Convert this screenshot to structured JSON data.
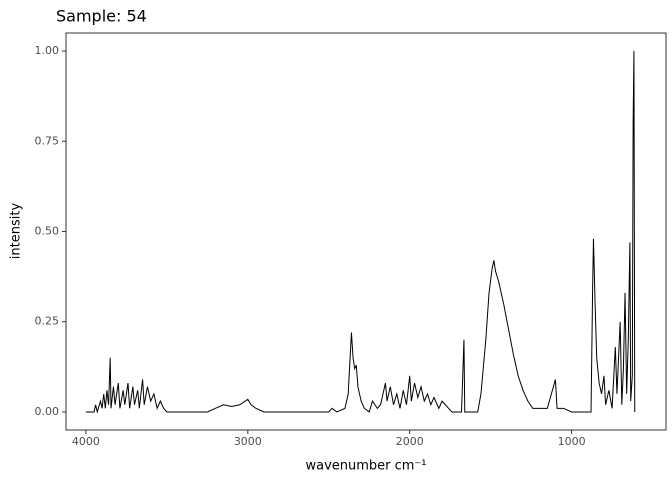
{
  "chart_data": {
    "type": "line",
    "title": "Sample: 54",
    "x_label": "wavenumber cm⁻¹",
    "y_label": "intensity",
    "xlim": [
      4123,
      417
    ],
    "ylim": [
      -0.05,
      1.05
    ],
    "xticks": [
      4000,
      3000,
      2000,
      1000
    ],
    "yticks": [
      {
        "value": 0,
        "label": "0.00"
      },
      {
        "value": 0.25,
        "label": "0.25"
      },
      {
        "value": 0.5,
        "label": "0.50"
      },
      {
        "value": 0.75,
        "label": "0.75"
      },
      {
        "value": 1,
        "label": "1.00"
      }
    ],
    "grid": false,
    "color": "#000000",
    "x": [
      4000,
      3950,
      3940,
      3930,
      3910,
      3900,
      3890,
      3880,
      3870,
      3860,
      3850,
      3845,
      3830,
      3820,
      3800,
      3790,
      3770,
      3760,
      3740,
      3730,
      3710,
      3700,
      3680,
      3670,
      3650,
      3640,
      3620,
      3600,
      3580,
      3560,
      3540,
      3520,
      3500,
      3250,
      3200,
      3150,
      3100,
      3050,
      3000,
      2980,
      2950,
      2900,
      2500,
      2480,
      2450,
      2400,
      2380,
      2360,
      2350,
      2340,
      2330,
      2320,
      2300,
      2280,
      2250,
      2230,
      2200,
      2180,
      2150,
      2140,
      2120,
      2100,
      2080,
      2060,
      2040,
      2020,
      2000,
      1990,
      1970,
      1950,
      1930,
      1910,
      1890,
      1870,
      1850,
      1820,
      1800,
      1780,
      1760,
      1740,
      1680,
      1665,
      1660,
      1580,
      1560,
      1550,
      1530,
      1510,
      1490,
      1480,
      1470,
      1450,
      1420,
      1390,
      1360,
      1330,
      1300,
      1270,
      1240,
      1200,
      1150,
      1100,
      1090,
      1050,
      1000,
      880,
      870,
      865,
      855,
      845,
      830,
      815,
      800,
      790,
      770,
      750,
      730,
      720,
      700,
      690,
      680,
      670,
      660,
      650,
      640,
      635,
      625,
      620,
      615,
      610
    ],
    "values": [
      0,
      0,
      0.02,
      0,
      0.03,
      0.01,
      0.05,
      0.01,
      0.06,
      0.02,
      0.15,
      0.01,
      0.07,
      0.02,
      0.08,
      0.01,
      0.06,
      0.02,
      0.08,
      0.01,
      0.07,
      0.02,
      0.06,
      0.01,
      0.09,
      0.02,
      0.07,
      0.03,
      0.05,
      0.01,
      0.03,
      0.01,
      0,
      0,
      0.01,
      0.02,
      0.015,
      0.02,
      0.035,
      0.02,
      0.01,
      0,
      0,
      0.01,
      0,
      0.01,
      0.05,
      0.22,
      0.15,
      0.12,
      0.13,
      0.07,
      0.03,
      0.01,
      0,
      0.03,
      0.01,
      0.02,
      0.08,
      0.03,
      0.07,
      0.02,
      0.05,
      0.01,
      0.06,
      0.02,
      0.1,
      0.03,
      0.08,
      0.04,
      0.07,
      0.03,
      0.05,
      0.02,
      0.04,
      0.01,
      0.03,
      0.02,
      0.01,
      0,
      0,
      0.2,
      0,
      0,
      0.05,
      0.1,
      0.2,
      0.33,
      0.4,
      0.42,
      0.39,
      0.36,
      0.3,
      0.23,
      0.16,
      0.1,
      0.06,
      0.03,
      0.01,
      0.01,
      0.01,
      0.09,
      0.01,
      0.01,
      0,
      0,
      0.35,
      0.48,
      0.3,
      0.15,
      0.08,
      0.05,
      0.1,
      0.02,
      0.06,
      0.01,
      0.18,
      0.05,
      0.25,
      0.02,
      0.12,
      0.33,
      0.05,
      0.2,
      0.47,
      0.03,
      0.1,
      0.8,
      1.0,
      0
    ]
  }
}
